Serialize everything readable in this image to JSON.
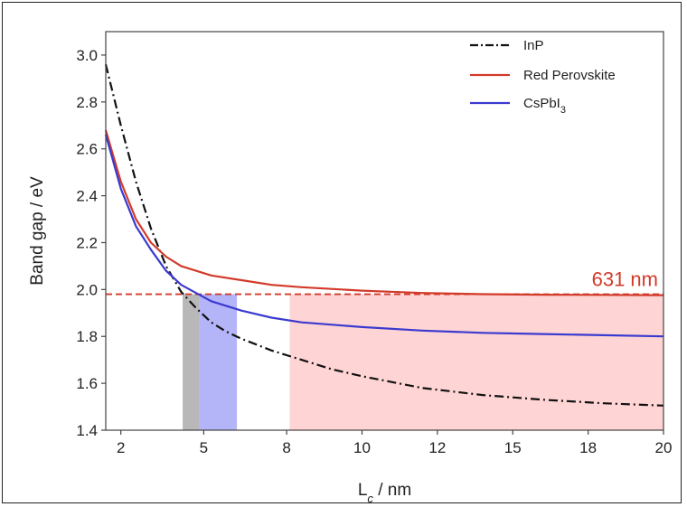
{
  "chart_data": {
    "type": "line",
    "xlabel_main": "L",
    "xlabel_sub": "c",
    "xlabel_rest": " / nm",
    "ylabel": "Band gap / eV",
    "xlim": [
      1.5,
      20
    ],
    "ylim": [
      1.4,
      3.1
    ],
    "x_ticks": [
      {
        "pos": 2,
        "label": "2"
      },
      {
        "pos": 4.75,
        "label": "5"
      },
      {
        "pos": 7.5,
        "label": "8"
      },
      {
        "pos": 10,
        "label": "10"
      },
      {
        "pos": 12.5,
        "label": "12"
      },
      {
        "pos": 15,
        "label": "15"
      },
      {
        "pos": 17.5,
        "label": "18"
      },
      {
        "pos": 20,
        "label": "20"
      }
    ],
    "y_ticks": [
      1.4,
      1.6,
      1.8,
      2.0,
      2.2,
      2.4,
      2.6,
      2.8,
      3.0
    ],
    "grid": false,
    "legend_position": "top-right",
    "series": [
      {
        "name": "InP",
        "color": "#111111",
        "style": "dashdot",
        "points": [
          [
            1.5,
            2.96
          ],
          [
            2.0,
            2.7
          ],
          [
            2.5,
            2.46
          ],
          [
            3.0,
            2.26
          ],
          [
            3.5,
            2.1
          ],
          [
            4.0,
            1.99
          ],
          [
            4.5,
            1.92
          ],
          [
            5.0,
            1.86
          ],
          [
            5.5,
            1.82
          ],
          [
            6.0,
            1.79
          ],
          [
            7.0,
            1.74
          ],
          [
            8.0,
            1.7
          ],
          [
            9.0,
            1.66
          ],
          [
            10.0,
            1.63
          ],
          [
            12.0,
            1.58
          ],
          [
            14.0,
            1.55
          ],
          [
            16.0,
            1.53
          ],
          [
            18.0,
            1.515
          ],
          [
            20.0,
            1.505
          ]
        ]
      },
      {
        "name": "Red Perovskite",
        "color": "#d23a2a",
        "style": "solid",
        "points": [
          [
            1.5,
            2.68
          ],
          [
            2.0,
            2.46
          ],
          [
            2.5,
            2.3
          ],
          [
            3.0,
            2.2
          ],
          [
            3.5,
            2.14
          ],
          [
            4.0,
            2.1
          ],
          [
            5.0,
            2.06
          ],
          [
            6.0,
            2.04
          ],
          [
            7.0,
            2.02
          ],
          [
            8.0,
            2.01
          ],
          [
            10.0,
            1.995
          ],
          [
            12.0,
            1.985
          ],
          [
            14.0,
            1.98
          ],
          [
            16.0,
            1.978
          ],
          [
            18.0,
            1.977
          ],
          [
            20.0,
            1.976
          ]
        ]
      },
      {
        "name": "CsPbI",
        "name_sub": "3",
        "color": "#3a3ad0",
        "style": "solid",
        "points": [
          [
            1.5,
            2.66
          ],
          [
            2.0,
            2.43
          ],
          [
            2.5,
            2.27
          ],
          [
            3.0,
            2.17
          ],
          [
            3.5,
            2.08
          ],
          [
            4.0,
            2.02
          ],
          [
            5.0,
            1.95
          ],
          [
            6.0,
            1.91
          ],
          [
            7.0,
            1.88
          ],
          [
            8.0,
            1.86
          ],
          [
            10.0,
            1.84
          ],
          [
            12.0,
            1.825
          ],
          [
            14.0,
            1.815
          ],
          [
            16.0,
            1.81
          ],
          [
            18.0,
            1.805
          ],
          [
            20.0,
            1.8
          ]
        ]
      }
    ],
    "reference_line": {
      "y": 1.98,
      "color": "#d23a2a",
      "label": "631 nm"
    },
    "shaded_regions": [
      {
        "x0": 4.05,
        "x1": 4.6,
        "color": "#9a9a9a",
        "opacity": 0.7
      },
      {
        "x0": 4.6,
        "x1": 5.85,
        "color": "#9b9bf5",
        "opacity": 0.75
      },
      {
        "x0": 7.6,
        "x1": 20,
        "color": "#ffc9c9",
        "opacity": 0.8
      }
    ]
  }
}
